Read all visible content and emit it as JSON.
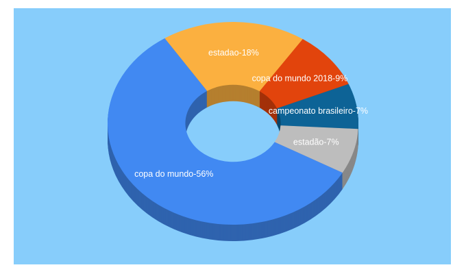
{
  "chart_data": {
    "type": "donut3d",
    "values": [
      18,
      9,
      7,
      7,
      56
    ],
    "value_labels": [
      "estadao-18%",
      "copa do mundo 2018-9%",
      "campeonato brasileiro-7%",
      "estadão-7%",
      "copa do mundo-56%"
    ],
    "colors": [
      "#fbb040",
      "#e2440c",
      "#0d6396",
      "#bdbdbd",
      "#4189f2"
    ],
    "background": "#87cdfb"
  }
}
